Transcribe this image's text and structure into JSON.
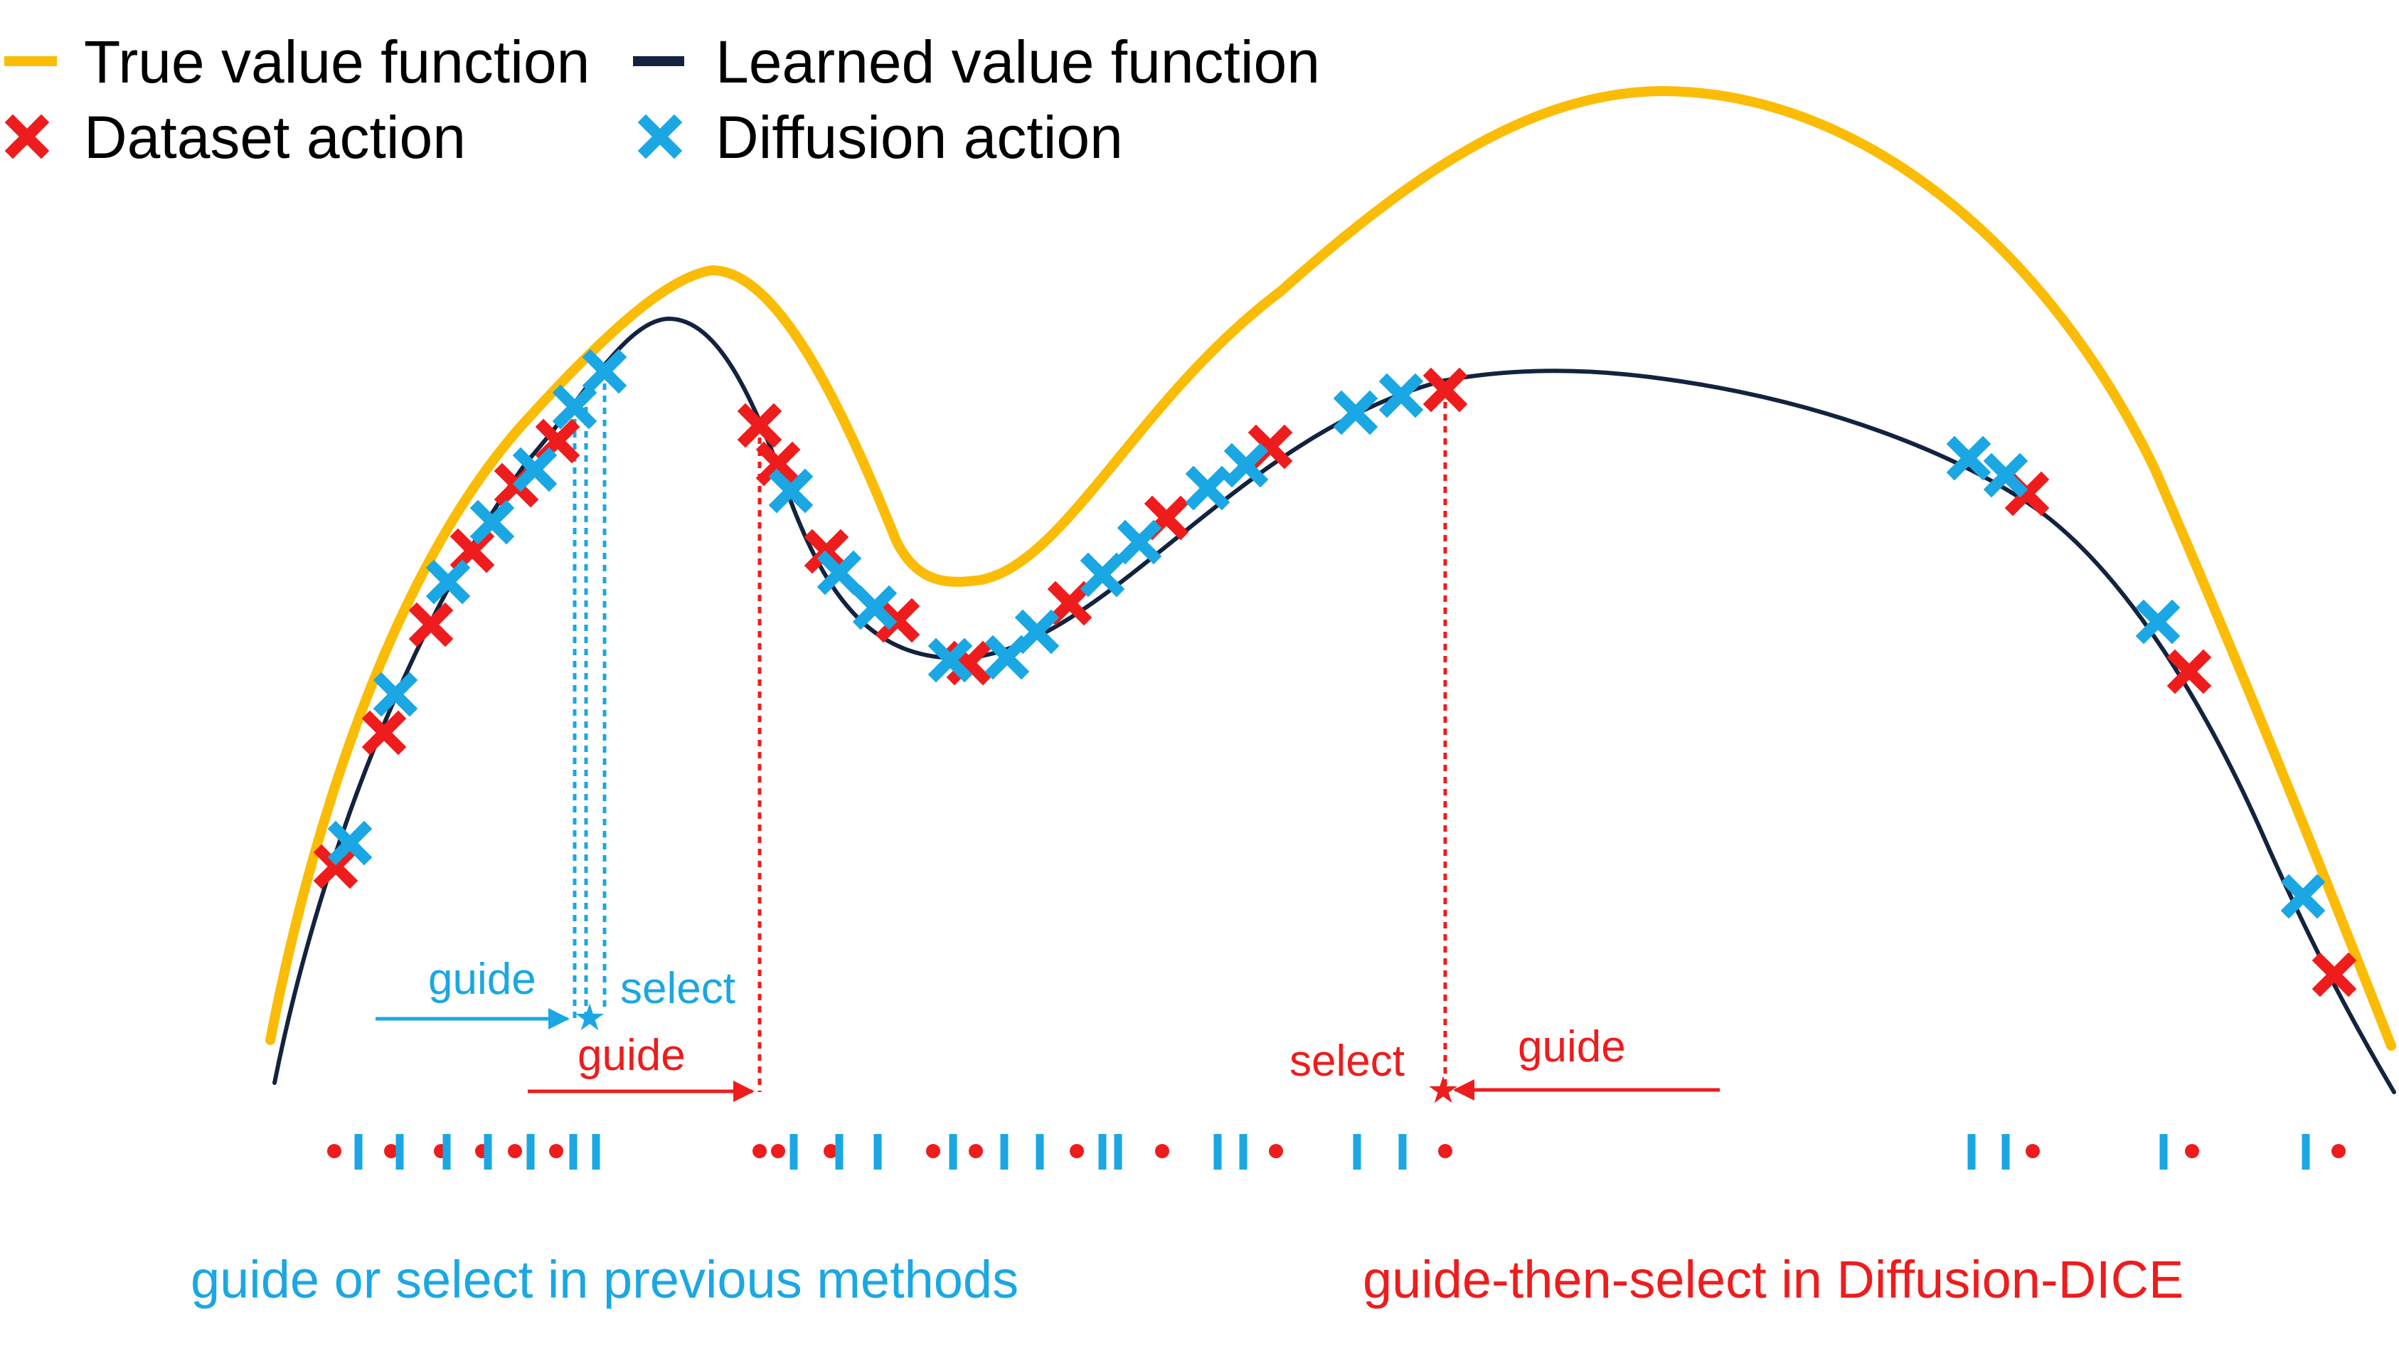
{
  "legend": {
    "true_value": "True value function",
    "learned_value": "Learned value function",
    "dataset_action": "Dataset action",
    "diffusion_action": "Diffusion action"
  },
  "annotations": {
    "guide_blue": "guide",
    "select_blue": "select",
    "guide_red_left": "guide",
    "select_red": "select",
    "guide_red_right": "guide"
  },
  "captions": {
    "previous": "guide or select in previous methods",
    "diffusion_dice": "guide-then-select in Diffusion-DICE"
  },
  "colors": {
    "true_value": "#fbbc05",
    "learned_value": "#13233f",
    "dataset": "#ee1c1c",
    "diffusion": "#1aa7e3"
  }
}
